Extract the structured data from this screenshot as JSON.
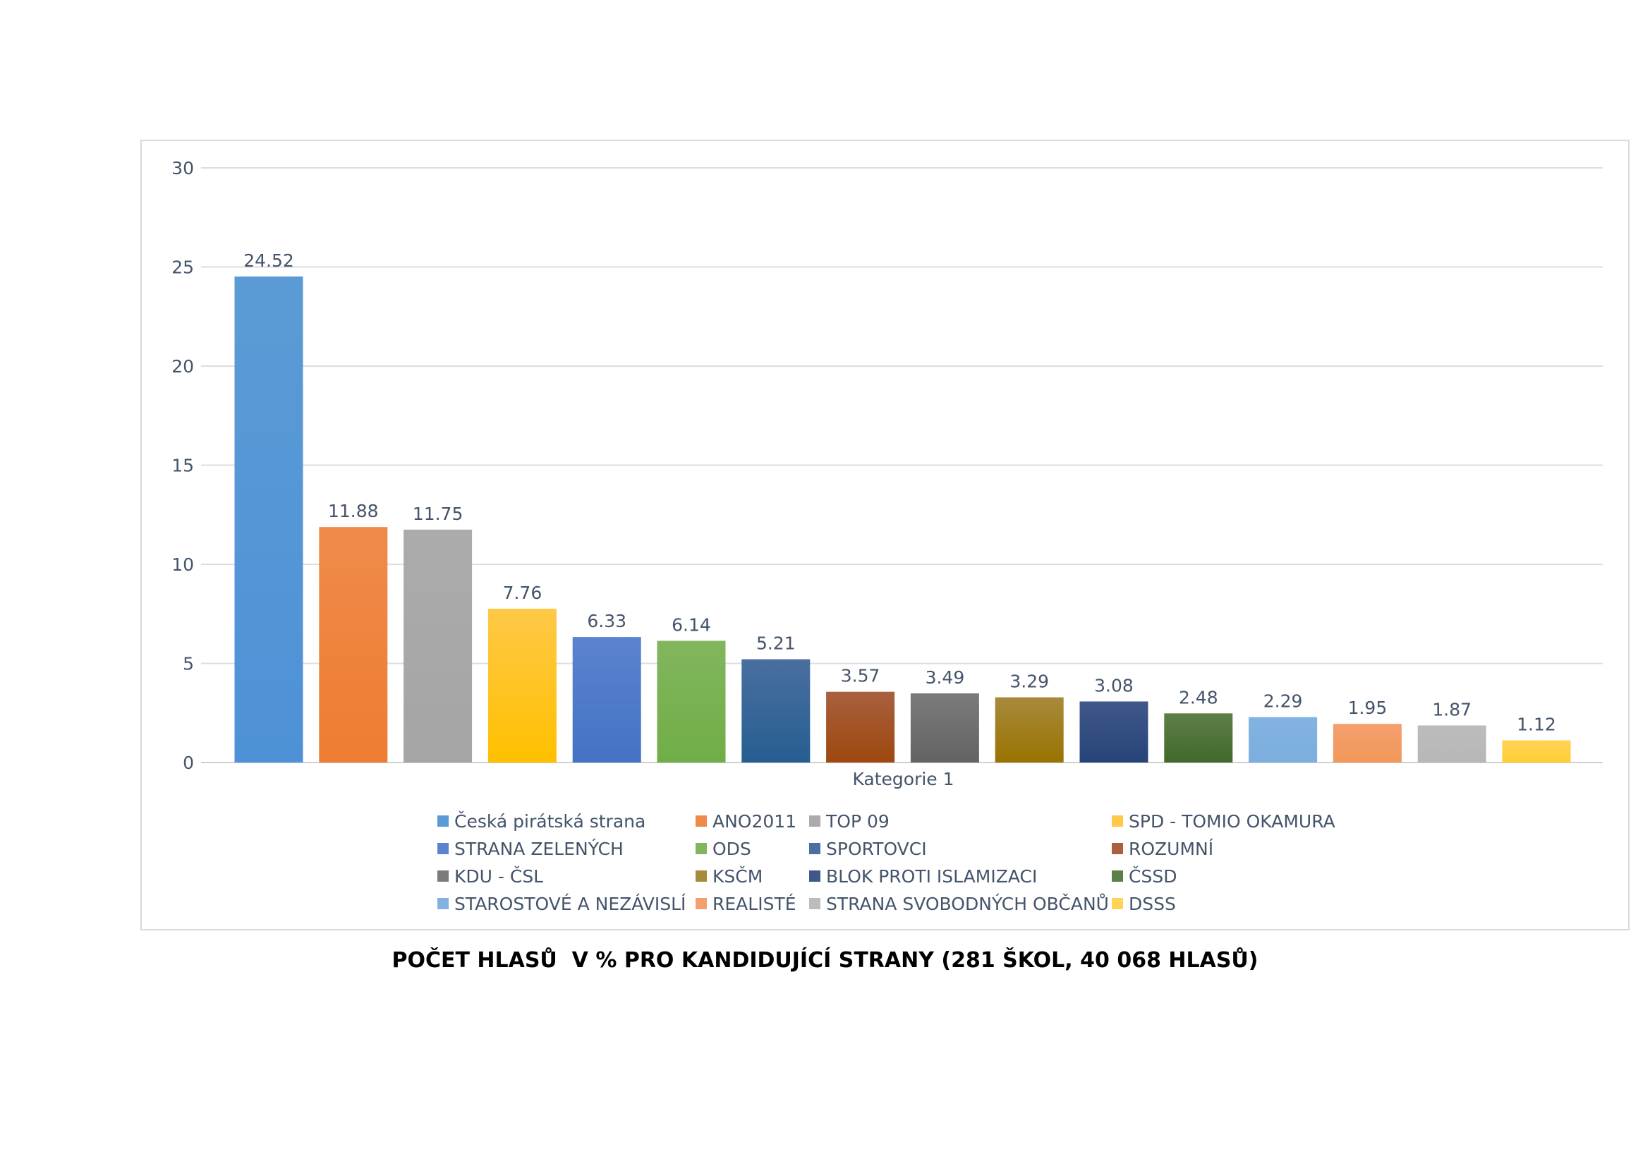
{
  "chart_data": {
    "type": "bar",
    "title": "POČET HLASŮ  V % PRO KANDIDUJÍCÍ STRANY (281 ŠKOL, 40 068 HLASŮ)",
    "xlabel": "",
    "ylabel": "",
    "categories": [
      "Kategorie 1"
    ],
    "ylim": [
      0,
      30
    ],
    "yticks": [
      0,
      5,
      10,
      15,
      20,
      25,
      30
    ],
    "grid": true,
    "legend_position": "bottom",
    "series": [
      {
        "name": "Česká pirátská strana",
        "values": [
          24.52
        ],
        "color": "#5b9bd5",
        "color_dark": "#4e91d6"
      },
      {
        "name": "ANO2011",
        "values": [
          11.88
        ],
        "color": "#f08a4b",
        "color_dark": "#ed7d31"
      },
      {
        "name": "TOP 09",
        "values": [
          11.75
        ],
        "color": "#ababab",
        "color_dark": "#a5a5a5"
      },
      {
        "name": "SPD - TOMIO OKAMURA",
        "values": [
          7.76
        ],
        "color": "#ffc847",
        "color_dark": "#ffc000"
      },
      {
        "name": "STRANA ZELENÝCH",
        "values": [
          6.33
        ],
        "color": "#5b83cf",
        "color_dark": "#4472c4"
      },
      {
        "name": "ODS",
        "values": [
          6.14
        ],
        "color": "#82b65e",
        "color_dark": "#70ad47"
      },
      {
        "name": "SPORTOVCI",
        "values": [
          5.21
        ],
        "color": "#4a6fa0",
        "color_dark": "#255e91"
      },
      {
        "name": "ROZUMNÍ",
        "values": [
          3.57
        ],
        "color": "#a9603e",
        "color_dark": "#9e480e"
      },
      {
        "name": "KDU - ČSL",
        "values": [
          3.49
        ],
        "color": "#7b7b7b",
        "color_dark": "#636363"
      },
      {
        "name": "KSČM",
        "values": [
          3.29
        ],
        "color": "#a88a3c",
        "color_dark": "#997300"
      },
      {
        "name": "BLOK PROTI ISLAMIZACI",
        "values": [
          3.08
        ],
        "color": "#40578a",
        "color_dark": "#264478"
      },
      {
        "name": "ČSSD",
        "values": [
          2.48
        ],
        "color": "#5c7f48",
        "color_dark": "#43682b"
      },
      {
        "name": "STAROSTOVÉ A NEZÁVISLÍ",
        "values": [
          2.29
        ],
        "color": "#82b2e2",
        "color_dark": "#7cafdd"
      },
      {
        "name": "REALISTÉ",
        "values": [
          1.95
        ],
        "color": "#f4a06e",
        "color_dark": "#f1975a"
      },
      {
        "name": "STRANA SVOBODNÝCH OBČANŮ",
        "values": [
          1.87
        ],
        "color": "#bcbcbc",
        "color_dark": "#b7b7b7"
      },
      {
        "name": "DSSS",
        "values": [
          1.12
        ],
        "color": "#ffd456",
        "color_dark": "#ffcd33"
      }
    ]
  }
}
